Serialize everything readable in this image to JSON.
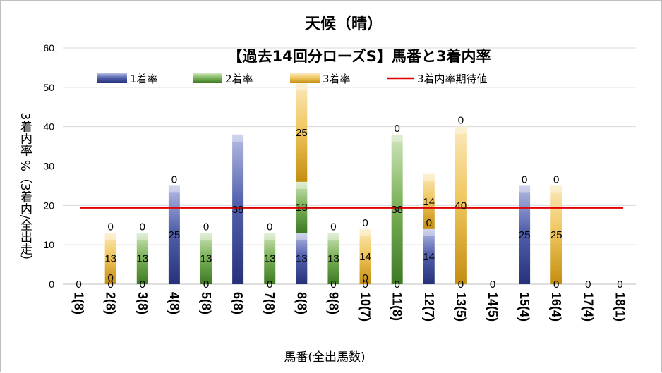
{
  "chart_data": {
    "type": "bar",
    "title": "天候（晴）",
    "subtitle": "【過去14回分ローズS】馬番と3着内率",
    "xlabel": "馬番(全出馬数)",
    "ylabel": "3着内率 %（3着内/全出走）",
    "ylim": [
      0,
      60
    ],
    "yticks": [
      "0",
      "10",
      "20",
      "30",
      "40",
      "50",
      "60"
    ],
    "grid": true,
    "legend_position": "top",
    "categories": [
      "1(8)",
      "2(8)",
      "3(8)",
      "4(8)",
      "5(8)",
      "6(8)",
      "7(8)",
      "8(8)",
      "9(8)",
      "10(7)",
      "11(8)",
      "12(7)",
      "13(5)",
      "14(5)",
      "15(4)",
      "16(4)",
      "17(4)",
      "18(1)"
    ],
    "series": [
      {
        "name": "1着率",
        "color": "#2e3b8c",
        "values": [
          0,
          0,
          0,
          25,
          0,
          38,
          0,
          13,
          0,
          0,
          0,
          14,
          0,
          0,
          25,
          0,
          0,
          0
        ],
        "labels": [
          "0",
          "0",
          "0",
          "25",
          "0",
          "38",
          "0",
          "13",
          "0",
          "0",
          "0",
          "14",
          "0",
          "0",
          "25",
          "0",
          "0",
          "0"
        ]
      },
      {
        "name": "2着率",
        "color": "#4e8a2e",
        "values": [
          0,
          0,
          13,
          0,
          13,
          0,
          13,
          13,
          13,
          0,
          38,
          0,
          0,
          0,
          0,
          0,
          0,
          0
        ],
        "labels": [
          "",
          "0",
          "13",
          "0",
          "13",
          "",
          "13",
          "13",
          "13",
          "0",
          "38",
          "0",
          "",
          "",
          "0",
          "",
          "",
          ""
        ]
      },
      {
        "name": "3着率",
        "color": "#d09a18",
        "values": [
          0,
          13,
          0,
          0,
          0,
          0,
          0,
          25,
          0,
          14,
          0,
          14,
          40,
          0,
          0,
          25,
          0,
          0
        ],
        "labels": [
          "",
          "13",
          "",
          "",
          "",
          "",
          "",
          "25",
          "",
          "14",
          "",
          "14",
          "40",
          "",
          "",
          "25",
          "",
          ""
        ]
      },
      {
        "name": "3着内率期待値",
        "type": "line",
        "color": "#e00000",
        "value": 19.4
      }
    ],
    "top_labels": [
      "",
      "0",
      "0",
      "",
      "0",
      "",
      "0",
      "",
      "0",
      "0",
      "0",
      "",
      "0",
      "",
      "",
      "0",
      "",
      ""
    ]
  }
}
